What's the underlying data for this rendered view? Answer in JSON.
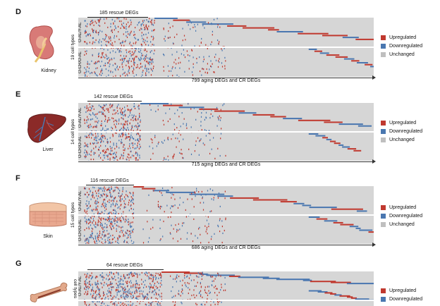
{
  "colors": {
    "upregulated": "#c0392f",
    "downregulated": "#4a77b0",
    "unchanged": "#bfbfbf",
    "background": "#d6d6d6"
  },
  "legend": {
    "upregulated": "Upregulated",
    "downregulated": "Downregulated",
    "unchanged": "Unchanged"
  },
  "row_labels": {
    "top": "O-AL/Y-AL",
    "bottom": "O-CR/O-AL"
  },
  "panels": [
    {
      "letter": "D",
      "organ": "Kidney",
      "organ_icon": "kidney-icon",
      "cell_types": "19 cell types",
      "rescue_label": "185 rescue DEGs",
      "x_label": "799 aging DEGs and CR DEGs"
    },
    {
      "letter": "E",
      "organ": "Liver",
      "organ_icon": "liver-icon",
      "cell_types": "14 cell types",
      "rescue_label": "142 rescue DEGs",
      "x_label": "715 aging DEGs and CR DEGs"
    },
    {
      "letter": "F",
      "organ": "Skin",
      "organ_icon": "skin-icon",
      "cell_types": "15 cell types",
      "rescue_label": "116 rescue DEGs",
      "x_label": "686 aging DEGs and CR DEGs"
    },
    {
      "letter": "G",
      "organ": "",
      "organ_icon": "bone-icon",
      "cell_types": "cell types",
      "rescue_label": "64 rescue DEGs",
      "x_label": ""
    }
  ]
}
